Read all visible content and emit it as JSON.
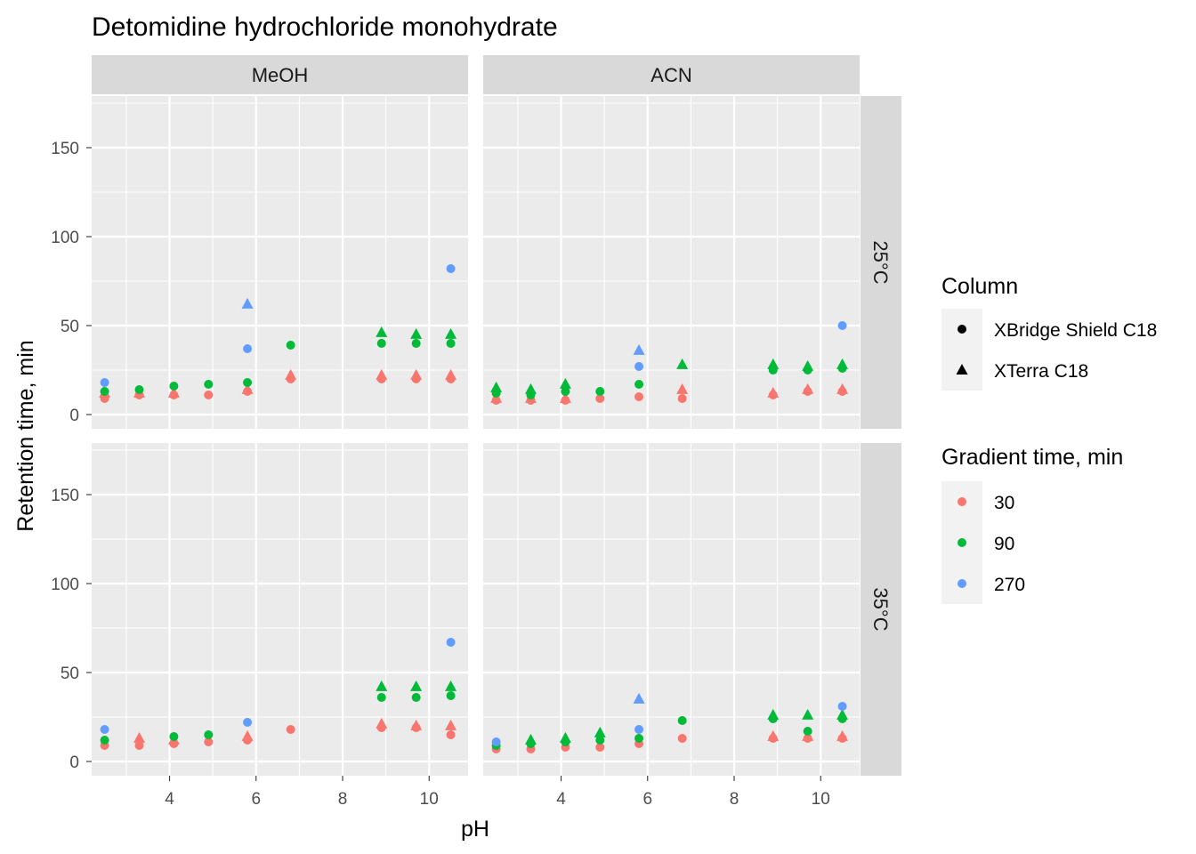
{
  "chart_data": {
    "type": "scatter",
    "title": "Detomidine hydrochloride monohydrate",
    "xlabel": "pH",
    "ylabel": "Retention time, min",
    "xlim": [
      2.2,
      10.9
    ],
    "ylim": [
      -8,
      179
    ],
    "x_ticks": [
      4,
      6,
      8,
      10
    ],
    "y_ticks": [
      0,
      50,
      100,
      150
    ],
    "grid": true,
    "facet_cols": [
      "MeOH",
      "ACN"
    ],
    "facet_rows": [
      "25°C",
      "35°C"
    ],
    "legends": [
      {
        "title": "Column",
        "type": "shape",
        "entries": [
          {
            "label": "XBridge Shield C18",
            "shape": "circle"
          },
          {
            "label": "XTerra C18",
            "shape": "triangle"
          }
        ]
      },
      {
        "title": "Gradient time, min",
        "type": "color",
        "entries": [
          {
            "label": "30",
            "color": "#F8766D"
          },
          {
            "label": "90",
            "color": "#00BA38"
          },
          {
            "label": "270",
            "color": "#619CFF"
          }
        ]
      }
    ],
    "legend_position": "right",
    "panels": [
      {
        "solvent": "MeOH",
        "temperature": "25°C",
        "points": [
          {
            "x": 2.5,
            "y": 9,
            "g": "30",
            "s": "circle"
          },
          {
            "x": 2.5,
            "y": 12,
            "g": "30",
            "s": "triangle"
          },
          {
            "x": 2.5,
            "y": 13,
            "g": "90",
            "s": "circle"
          },
          {
            "x": 2.5,
            "y": 18,
            "g": "270",
            "s": "circle"
          },
          {
            "x": 3.3,
            "y": 11,
            "g": "30",
            "s": "circle"
          },
          {
            "x": 3.3,
            "y": 12,
            "g": "30",
            "s": "triangle"
          },
          {
            "x": 3.3,
            "y": 14,
            "g": "90",
            "s": "circle"
          },
          {
            "x": 4.1,
            "y": 11,
            "g": "30",
            "s": "circle"
          },
          {
            "x": 4.1,
            "y": 12,
            "g": "30",
            "s": "triangle"
          },
          {
            "x": 4.1,
            "y": 16,
            "g": "90",
            "s": "circle"
          },
          {
            "x": 4.9,
            "y": 11,
            "g": "30",
            "s": "circle"
          },
          {
            "x": 4.9,
            "y": 17,
            "g": "90",
            "s": "circle"
          },
          {
            "x": 5.8,
            "y": 13,
            "g": "30",
            "s": "circle"
          },
          {
            "x": 5.8,
            "y": 14,
            "g": "30",
            "s": "triangle"
          },
          {
            "x": 5.8,
            "y": 18,
            "g": "90",
            "s": "circle"
          },
          {
            "x": 5.8,
            "y": 37,
            "g": "270",
            "s": "circle"
          },
          {
            "x": 5.8,
            "y": 62,
            "g": "270",
            "s": "triangle"
          },
          {
            "x": 6.8,
            "y": 20,
            "g": "30",
            "s": "circle"
          },
          {
            "x": 6.8,
            "y": 22,
            "g": "30",
            "s": "triangle"
          },
          {
            "x": 6.8,
            "y": 39,
            "g": "90",
            "s": "circle"
          },
          {
            "x": 8.9,
            "y": 20,
            "g": "30",
            "s": "circle"
          },
          {
            "x": 8.9,
            "y": 22,
            "g": "30",
            "s": "triangle"
          },
          {
            "x": 8.9,
            "y": 40,
            "g": "90",
            "s": "circle"
          },
          {
            "x": 8.9,
            "y": 46,
            "g": "90",
            "s": "triangle"
          },
          {
            "x": 9.7,
            "y": 20,
            "g": "30",
            "s": "circle"
          },
          {
            "x": 9.7,
            "y": 22,
            "g": "30",
            "s": "triangle"
          },
          {
            "x": 9.7,
            "y": 40,
            "g": "90",
            "s": "circle"
          },
          {
            "x": 9.7,
            "y": 45,
            "g": "90",
            "s": "triangle"
          },
          {
            "x": 10.5,
            "y": 20,
            "g": "30",
            "s": "circle"
          },
          {
            "x": 10.5,
            "y": 22,
            "g": "30",
            "s": "triangle"
          },
          {
            "x": 10.5,
            "y": 40,
            "g": "90",
            "s": "circle"
          },
          {
            "x": 10.5,
            "y": 45,
            "g": "90",
            "s": "triangle"
          },
          {
            "x": 10.5,
            "y": 82,
            "g": "270",
            "s": "circle"
          }
        ]
      },
      {
        "solvent": "ACN",
        "temperature": "25°C",
        "points": [
          {
            "x": 2.5,
            "y": 8,
            "g": "30",
            "s": "circle"
          },
          {
            "x": 2.5,
            "y": 9,
            "g": "30",
            "s": "triangle"
          },
          {
            "x": 2.5,
            "y": 12,
            "g": "90",
            "s": "circle"
          },
          {
            "x": 2.5,
            "y": 15,
            "g": "90",
            "s": "triangle"
          },
          {
            "x": 3.3,
            "y": 8,
            "g": "30",
            "s": "circle"
          },
          {
            "x": 3.3,
            "y": 9,
            "g": "30",
            "s": "triangle"
          },
          {
            "x": 3.3,
            "y": 11,
            "g": "90",
            "s": "circle"
          },
          {
            "x": 3.3,
            "y": 14,
            "g": "90",
            "s": "triangle"
          },
          {
            "x": 4.1,
            "y": 8,
            "g": "30",
            "s": "circle"
          },
          {
            "x": 4.1,
            "y": 9,
            "g": "30",
            "s": "triangle"
          },
          {
            "x": 4.1,
            "y": 13,
            "g": "90",
            "s": "circle"
          },
          {
            "x": 4.1,
            "y": 17,
            "g": "90",
            "s": "triangle"
          },
          {
            "x": 4.9,
            "y": 9,
            "g": "30",
            "s": "circle"
          },
          {
            "x": 4.9,
            "y": 13,
            "g": "90",
            "s": "circle"
          },
          {
            "x": 5.8,
            "y": 10,
            "g": "30",
            "s": "circle"
          },
          {
            "x": 5.8,
            "y": 17,
            "g": "90",
            "s": "circle"
          },
          {
            "x": 5.8,
            "y": 27,
            "g": "270",
            "s": "circle"
          },
          {
            "x": 5.8,
            "y": 36,
            "g": "270",
            "s": "triangle"
          },
          {
            "x": 6.8,
            "y": 9,
            "g": "30",
            "s": "circle"
          },
          {
            "x": 6.8,
            "y": 14,
            "g": "30",
            "s": "triangle"
          },
          {
            "x": 6.8,
            "y": 28,
            "g": "90",
            "s": "triangle"
          },
          {
            "x": 8.9,
            "y": 11,
            "g": "30",
            "s": "circle"
          },
          {
            "x": 8.9,
            "y": 12,
            "g": "30",
            "s": "triangle"
          },
          {
            "x": 8.9,
            "y": 25,
            "g": "90",
            "s": "circle"
          },
          {
            "x": 8.9,
            "y": 28,
            "g": "90",
            "s": "triangle"
          },
          {
            "x": 9.7,
            "y": 13,
            "g": "30",
            "s": "circle"
          },
          {
            "x": 9.7,
            "y": 14,
            "g": "30",
            "s": "triangle"
          },
          {
            "x": 9.7,
            "y": 25,
            "g": "90",
            "s": "circle"
          },
          {
            "x": 9.7,
            "y": 27,
            "g": "90",
            "s": "triangle"
          },
          {
            "x": 10.5,
            "y": 13,
            "g": "30",
            "s": "circle"
          },
          {
            "x": 10.5,
            "y": 14,
            "g": "30",
            "s": "triangle"
          },
          {
            "x": 10.5,
            "y": 26,
            "g": "90",
            "s": "circle"
          },
          {
            "x": 10.5,
            "y": 28,
            "g": "90",
            "s": "triangle"
          },
          {
            "x": 10.5,
            "y": 50,
            "g": "270",
            "s": "circle"
          }
        ]
      },
      {
        "solvent": "MeOH",
        "temperature": "35°C",
        "points": [
          {
            "x": 2.5,
            "y": 9,
            "g": "30",
            "s": "circle"
          },
          {
            "x": 2.5,
            "y": 12,
            "g": "90",
            "s": "circle"
          },
          {
            "x": 2.5,
            "y": 18,
            "g": "270",
            "s": "circle"
          },
          {
            "x": 3.3,
            "y": 9,
            "g": "30",
            "s": "circle"
          },
          {
            "x": 3.3,
            "y": 13,
            "g": "30",
            "s": "triangle"
          },
          {
            "x": 4.1,
            "y": 10,
            "g": "30",
            "s": "circle"
          },
          {
            "x": 4.1,
            "y": 12,
            "g": "30",
            "s": "triangle"
          },
          {
            "x": 4.1,
            "y": 14,
            "g": "90",
            "s": "circle"
          },
          {
            "x": 4.9,
            "y": 11,
            "g": "30",
            "s": "circle"
          },
          {
            "x": 4.9,
            "y": 15,
            "g": "90",
            "s": "circle"
          },
          {
            "x": 5.8,
            "y": 12,
            "g": "30",
            "s": "circle"
          },
          {
            "x": 5.8,
            "y": 14,
            "g": "30",
            "s": "triangle"
          },
          {
            "x": 5.8,
            "y": 22,
            "g": "270",
            "s": "circle"
          },
          {
            "x": 6.8,
            "y": 18,
            "g": "30",
            "s": "circle"
          },
          {
            "x": 8.9,
            "y": 19,
            "g": "30",
            "s": "circle"
          },
          {
            "x": 8.9,
            "y": 21,
            "g": "30",
            "s": "triangle"
          },
          {
            "x": 8.9,
            "y": 36,
            "g": "90",
            "s": "circle"
          },
          {
            "x": 8.9,
            "y": 42,
            "g": "90",
            "s": "triangle"
          },
          {
            "x": 9.7,
            "y": 19,
            "g": "30",
            "s": "circle"
          },
          {
            "x": 9.7,
            "y": 20,
            "g": "30",
            "s": "triangle"
          },
          {
            "x": 9.7,
            "y": 36,
            "g": "90",
            "s": "circle"
          },
          {
            "x": 9.7,
            "y": 42,
            "g": "90",
            "s": "triangle"
          },
          {
            "x": 10.5,
            "y": 15,
            "g": "30",
            "s": "circle"
          },
          {
            "x": 10.5,
            "y": 20,
            "g": "30",
            "s": "triangle"
          },
          {
            "x": 10.5,
            "y": 37,
            "g": "90",
            "s": "circle"
          },
          {
            "x": 10.5,
            "y": 42,
            "g": "90",
            "s": "triangle"
          },
          {
            "x": 10.5,
            "y": 67,
            "g": "270",
            "s": "circle"
          }
        ]
      },
      {
        "solvent": "ACN",
        "temperature": "35°C",
        "points": [
          {
            "x": 2.5,
            "y": 7,
            "g": "30",
            "s": "circle"
          },
          {
            "x": 2.5,
            "y": 9,
            "g": "90",
            "s": "circle"
          },
          {
            "x": 2.5,
            "y": 11,
            "g": "270",
            "s": "circle"
          },
          {
            "x": 3.3,
            "y": 7,
            "g": "30",
            "s": "circle"
          },
          {
            "x": 3.3,
            "y": 10,
            "g": "90",
            "s": "circle"
          },
          {
            "x": 3.3,
            "y": 12,
            "g": "90",
            "s": "triangle"
          },
          {
            "x": 4.1,
            "y": 8,
            "g": "30",
            "s": "circle"
          },
          {
            "x": 4.1,
            "y": 11,
            "g": "90",
            "s": "circle"
          },
          {
            "x": 4.1,
            "y": 13,
            "g": "90",
            "s": "triangle"
          },
          {
            "x": 4.9,
            "y": 8,
            "g": "30",
            "s": "circle"
          },
          {
            "x": 4.9,
            "y": 12,
            "g": "90",
            "s": "circle"
          },
          {
            "x": 4.9,
            "y": 16,
            "g": "90",
            "s": "triangle"
          },
          {
            "x": 5.8,
            "y": 10,
            "g": "30",
            "s": "circle"
          },
          {
            "x": 5.8,
            "y": 13,
            "g": "90",
            "s": "circle"
          },
          {
            "x": 5.8,
            "y": 18,
            "g": "270",
            "s": "circle"
          },
          {
            "x": 5.8,
            "y": 35,
            "g": "270",
            "s": "triangle"
          },
          {
            "x": 6.8,
            "y": 13,
            "g": "30",
            "s": "circle"
          },
          {
            "x": 6.8,
            "y": 23,
            "g": "90",
            "s": "circle"
          },
          {
            "x": 8.9,
            "y": 13,
            "g": "30",
            "s": "circle"
          },
          {
            "x": 8.9,
            "y": 14,
            "g": "30",
            "s": "triangle"
          },
          {
            "x": 8.9,
            "y": 24,
            "g": "90",
            "s": "circle"
          },
          {
            "x": 8.9,
            "y": 26,
            "g": "90",
            "s": "triangle"
          },
          {
            "x": 9.7,
            "y": 13,
            "g": "30",
            "s": "circle"
          },
          {
            "x": 9.7,
            "y": 14,
            "g": "30",
            "s": "triangle"
          },
          {
            "x": 9.7,
            "y": 17,
            "g": "90",
            "s": "circle"
          },
          {
            "x": 9.7,
            "y": 26,
            "g": "90",
            "s": "triangle"
          },
          {
            "x": 10.5,
            "y": 13,
            "g": "30",
            "s": "circle"
          },
          {
            "x": 10.5,
            "y": 14,
            "g": "30",
            "s": "triangle"
          },
          {
            "x": 10.5,
            "y": 24,
            "g": "90",
            "s": "circle"
          },
          {
            "x": 10.5,
            "y": 26,
            "g": "90",
            "s": "triangle"
          },
          {
            "x": 10.5,
            "y": 31,
            "g": "270",
            "s": "circle"
          }
        ]
      }
    ]
  }
}
